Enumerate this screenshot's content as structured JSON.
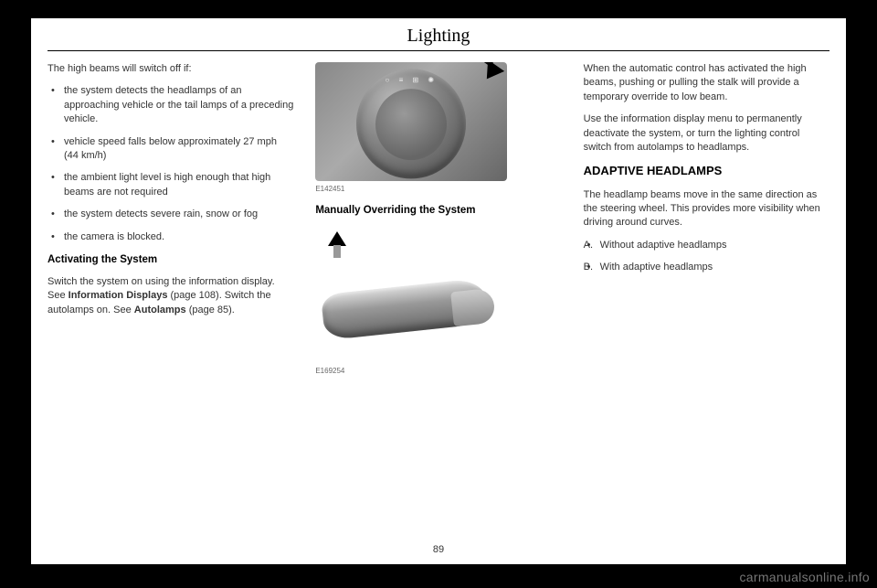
{
  "page": {
    "title": "Lighting",
    "number": "89",
    "watermark": "carmanualsonline.info"
  },
  "col1": {
    "intro": "The high beams will switch off if:",
    "bullets": [
      "the system detects the headlamps of an approaching vehicle or the tail lamps of a preceding vehicle.",
      "vehicle speed falls below approximately 27 mph (44 km/h)",
      "the ambient light level is high enough that high beams are not required",
      "the system detects severe rain, snow or fog",
      "the camera is blocked."
    ],
    "heading1": "Activating the System",
    "p1a": "Switch the system on using the information display.  See ",
    "p1b": "Information Displays",
    "p1c": " (page 108).  Switch the autolamps on.  See ",
    "p1d": "Autolamps",
    "p1e": " (page 85)."
  },
  "col2": {
    "fig1_label": "E142451",
    "heading2": "Manually Overriding the System",
    "fig2_label": "E169254"
  },
  "col3": {
    "p1": "When the automatic control has activated the high beams, pushing or pulling the stalk will provide a temporary override to low beam.",
    "p2": "Use the information display menu to permanently deactivate the system, or turn the lighting control switch from autolamps to headlamps.",
    "heading3": "ADAPTIVE HEADLAMPS",
    "p3": "The headlamp beams move in the same direction as the steering wheel. This provides more visibility when driving around curves.",
    "listA": "Without adaptive headlamps",
    "listB": "With adaptive headlamps"
  }
}
